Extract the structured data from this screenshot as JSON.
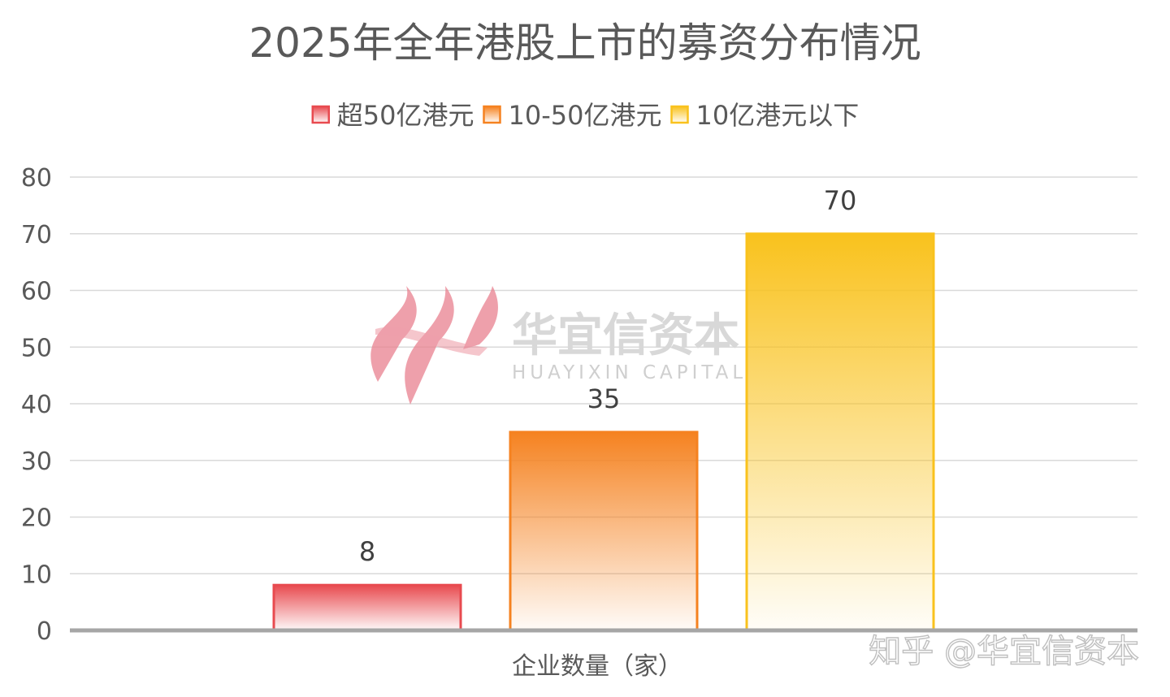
{
  "chart_data": {
    "type": "bar",
    "title": "2025年全年港股上市的募资分布情况",
    "xlabel": "企业数量（家）",
    "ylabel": "",
    "ylim": [
      0,
      80
    ],
    "yticks": [
      0,
      10,
      20,
      30,
      40,
      50,
      60,
      70,
      80
    ],
    "grid": true,
    "legend_position": "top-center",
    "categories": [
      ""
    ],
    "series": [
      {
        "name": "超50亿港元",
        "values": [
          8
        ],
        "color": "#e84a4f"
      },
      {
        "name": "10-50亿港元",
        "values": [
          35
        ],
        "color": "#f58220"
      },
      {
        "name": "10亿港元以下",
        "values": [
          70
        ],
        "color": "#f9c21d"
      }
    ]
  },
  "watermark": {
    "logo_icon": "huayixin-logo-icon",
    "name_cn": "华宜信资本",
    "name_en": "HUAYIXIN CAPITAL"
  },
  "credit": "知乎 @华宜信资本"
}
